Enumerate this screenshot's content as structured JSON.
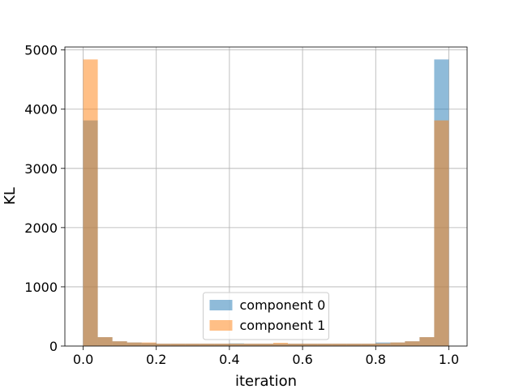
{
  "chart_data": {
    "type": "bar",
    "subtype": "overlaid-histogram",
    "title": "",
    "xlabel": "iteration",
    "ylabel": "KL",
    "xlim": [
      -0.05,
      1.05
    ],
    "ylim": [
      0,
      5050
    ],
    "bins": 25,
    "bin_range": [
      0,
      1
    ],
    "xticks": [
      0.0,
      0.2,
      0.4,
      0.6,
      0.8,
      1.0
    ],
    "xtick_labels": [
      "0.0",
      "0.2",
      "0.4",
      "0.6",
      "0.8",
      "1.0"
    ],
    "yticks": [
      0,
      1000,
      2000,
      3000,
      4000,
      5000
    ],
    "ytick_labels": [
      "0",
      "1000",
      "2000",
      "3000",
      "4000",
      "5000"
    ],
    "grid": true,
    "legend_position": "lower-center",
    "series": [
      {
        "name": "component 0",
        "color": "#1f77b4",
        "alpha": 0.5,
        "values": [
          3810,
          150,
          80,
          60,
          50,
          40,
          40,
          40,
          40,
          40,
          45,
          40,
          40,
          40,
          40,
          40,
          40,
          40,
          40,
          40,
          60,
          60,
          80,
          150,
          4840
        ]
      },
      {
        "name": "component 1",
        "color": "#ff7f0e",
        "alpha": 0.5,
        "values": [
          4840,
          150,
          80,
          60,
          60,
          40,
          40,
          40,
          40,
          40,
          40,
          40,
          40,
          55,
          40,
          40,
          40,
          40,
          40,
          40,
          45,
          60,
          80,
          150,
          3810
        ]
      }
    ]
  }
}
